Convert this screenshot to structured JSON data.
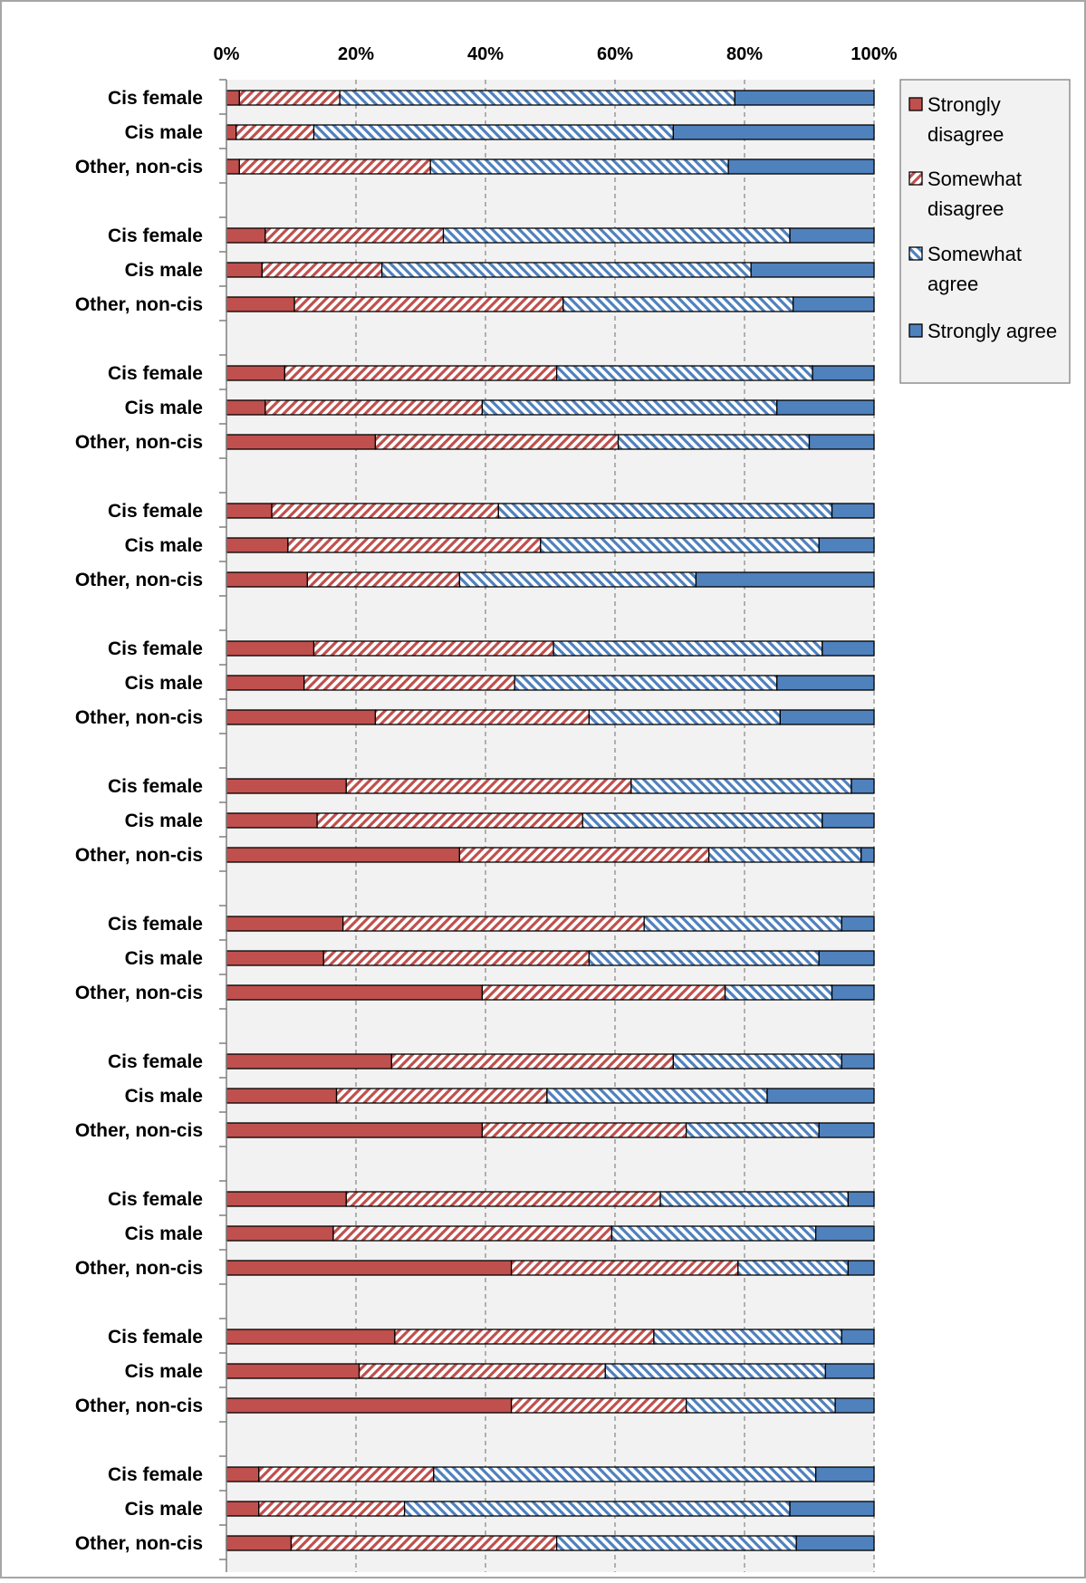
{
  "chart_data": {
    "type": "bar",
    "orientation": "horizontal",
    "stacked": "percent",
    "xlim": [
      0,
      100
    ],
    "x_ticks": [
      "0%",
      "20%",
      "40%",
      "60%",
      "80%",
      "100%"
    ],
    "x_axis_position": "top",
    "grid": true,
    "legend_position": "right",
    "colors": {
      "strongly_disagree": "#c0504d",
      "somewhat_disagree": "#c0504d",
      "somewhat_agree": "#4f81bd",
      "strongly_agree": "#4f81bd",
      "plot_background": "#f2f2f2",
      "grid": "#8c8c8c"
    },
    "legend": [
      {
        "key": "strongly_disagree",
        "lines": [
          "Strongly",
          "disagree"
        ],
        "pattern": "solid",
        "color": "#c0504d"
      },
      {
        "key": "somewhat_disagree",
        "lines": [
          "Somewhat",
          "disagree"
        ],
        "pattern": "hatch-up",
        "color": "#c0504d"
      },
      {
        "key": "somewhat_agree",
        "lines": [
          "Somewhat",
          "agree"
        ],
        "pattern": "hatch-down",
        "color": "#4f81bd"
      },
      {
        "key": "strongly_agree",
        "lines": [
          "Strongly agree"
        ],
        "pattern": "solid",
        "color": "#4f81bd"
      }
    ],
    "groups": [
      {
        "rows": [
          {
            "label": "Cis female",
            "values": [
              2,
              15.5,
              61,
              21.5
            ]
          },
          {
            "label": "Cis male",
            "values": [
              1.5,
              12,
              55.5,
              31
            ]
          },
          {
            "label": "Other, non-cis",
            "values": [
              2,
              29.5,
              46,
              22.5
            ]
          }
        ]
      },
      {
        "rows": [
          {
            "label": "Cis female",
            "values": [
              6,
              27.5,
              53.5,
              13
            ]
          },
          {
            "label": "Cis male",
            "values": [
              5.5,
              18.5,
              57,
              19
            ]
          },
          {
            "label": "Other, non-cis",
            "values": [
              10.5,
              41.5,
              35.5,
              12.5
            ]
          }
        ]
      },
      {
        "rows": [
          {
            "label": "Cis female",
            "values": [
              9,
              42,
              39.5,
              9.5
            ]
          },
          {
            "label": "Cis male",
            "values": [
              6,
              33.5,
              45.5,
              15
            ]
          },
          {
            "label": "Other, non-cis",
            "values": [
              23,
              37.5,
              29.5,
              10
            ]
          }
        ]
      },
      {
        "rows": [
          {
            "label": "Cis female",
            "values": [
              7,
              35,
              51.5,
              6.5
            ]
          },
          {
            "label": "Cis male",
            "values": [
              9.5,
              39,
              43,
              8.5
            ]
          },
          {
            "label": "Other, non-cis",
            "values": [
              12.5,
              23.5,
              36.5,
              27.5
            ]
          }
        ]
      },
      {
        "rows": [
          {
            "label": "Cis female",
            "values": [
              13.5,
              37,
              41.5,
              8
            ]
          },
          {
            "label": "Cis male",
            "values": [
              12,
              32.5,
              40.5,
              15
            ]
          },
          {
            "label": "Other, non-cis",
            "values": [
              23,
              33,
              29.5,
              14.5
            ]
          }
        ]
      },
      {
        "rows": [
          {
            "label": "Cis female",
            "values": [
              18.5,
              44,
              34,
              3.5
            ]
          },
          {
            "label": "Cis male",
            "values": [
              14,
              41,
              37,
              8
            ]
          },
          {
            "label": "Other, non-cis",
            "values": [
              36,
              38.5,
              23.5,
              2
            ]
          }
        ]
      },
      {
        "rows": [
          {
            "label": "Cis female",
            "values": [
              18,
              46.5,
              30.5,
              5
            ]
          },
          {
            "label": "Cis male",
            "values": [
              15,
              41,
              35.5,
              8.5
            ]
          },
          {
            "label": "Other, non-cis",
            "values": [
              39.5,
              37.5,
              16.5,
              6.5
            ]
          }
        ]
      },
      {
        "rows": [
          {
            "label": "Cis female",
            "values": [
              25.5,
              43.5,
              26,
              5
            ]
          },
          {
            "label": "Cis male",
            "values": [
              17,
              32.5,
              34,
              16.5
            ]
          },
          {
            "label": "Other, non-cis",
            "values": [
              39.5,
              31.5,
              20.5,
              8.5
            ]
          }
        ]
      },
      {
        "rows": [
          {
            "label": "Cis female",
            "values": [
              18.5,
              48.5,
              29,
              4
            ]
          },
          {
            "label": "Cis male",
            "values": [
              16.5,
              43,
              31.5,
              9
            ]
          },
          {
            "label": "Other, non-cis",
            "values": [
              44,
              35,
              17,
              4
            ]
          }
        ]
      },
      {
        "rows": [
          {
            "label": "Cis female",
            "values": [
              26,
              40,
              29,
              5
            ]
          },
          {
            "label": "Cis male",
            "values": [
              20.5,
              38,
              34,
              7.5
            ]
          },
          {
            "label": "Other, non-cis",
            "values": [
              44,
              27,
              23,
              6
            ]
          }
        ]
      },
      {
        "rows": [
          {
            "label": "Cis female",
            "values": [
              5,
              27,
              59,
              9
            ]
          },
          {
            "label": "Cis male",
            "values": [
              5,
              22.5,
              59.5,
              13
            ]
          },
          {
            "label": "Other, non-cis",
            "values": [
              10,
              41,
              37,
              12
            ]
          }
        ]
      }
    ]
  }
}
